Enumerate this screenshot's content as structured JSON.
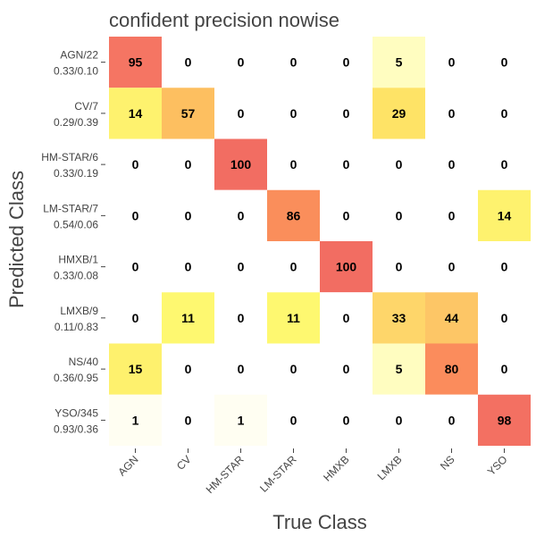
{
  "chart_data": {
    "type": "heatmap",
    "title": "confident precision nowise",
    "xlabel": "True Class",
    "ylabel": "Predicted Class",
    "columns": [
      "AGN",
      "CV",
      "HM-STAR",
      "LM-STAR",
      "HMXB",
      "LMXB",
      "NS",
      "YSO"
    ],
    "rows": [
      {
        "label": "AGN/22",
        "sub": "0.33/0.10"
      },
      {
        "label": "CV/7",
        "sub": "0.29/0.39"
      },
      {
        "label": "HM-STAR/6",
        "sub": "0.33/0.19"
      },
      {
        "label": "LM-STAR/7",
        "sub": "0.54/0.06"
      },
      {
        "label": "HMXB/1",
        "sub": "0.33/0.08"
      },
      {
        "label": "LMXB/9",
        "sub": "0.11/0.83"
      },
      {
        "label": "NS/40",
        "sub": "0.36/0.95"
      },
      {
        "label": "YSO/345",
        "sub": "0.93/0.36"
      }
    ],
    "values": [
      [
        95,
        0,
        0,
        0,
        0,
        5,
        0,
        0
      ],
      [
        14,
        57,
        0,
        0,
        0,
        29,
        0,
        0
      ],
      [
        0,
        0,
        100,
        0,
        0,
        0,
        0,
        0
      ],
      [
        0,
        0,
        0,
        86,
        0,
        0,
        0,
        14
      ],
      [
        0,
        0,
        0,
        0,
        100,
        0,
        0,
        0
      ],
      [
        0,
        11,
        0,
        11,
        0,
        33,
        44,
        0
      ],
      [
        15,
        0,
        0,
        0,
        0,
        5,
        80,
        0
      ],
      [
        1,
        0,
        1,
        0,
        0,
        0,
        0,
        98
      ]
    ],
    "colorscale": {
      "zero": "#ffffff",
      "stops": [
        {
          "v": 1,
          "c": "#fffef2"
        },
        {
          "v": 5,
          "c": "#fffdc0"
        },
        {
          "v": 11,
          "c": "#fef870"
        },
        {
          "v": 14,
          "c": "#fef26e"
        },
        {
          "v": 29,
          "c": "#fee366"
        },
        {
          "v": 33,
          "c": "#fed66a"
        },
        {
          "v": 44,
          "c": "#fdc666"
        },
        {
          "v": 57,
          "c": "#fdbf60"
        },
        {
          "v": 80,
          "c": "#fb8c5c"
        },
        {
          "v": 86,
          "c": "#fa8e5b"
        },
        {
          "v": 95,
          "c": "#f57563"
        },
        {
          "v": 100,
          "c": "#f26d62"
        }
      ]
    }
  }
}
